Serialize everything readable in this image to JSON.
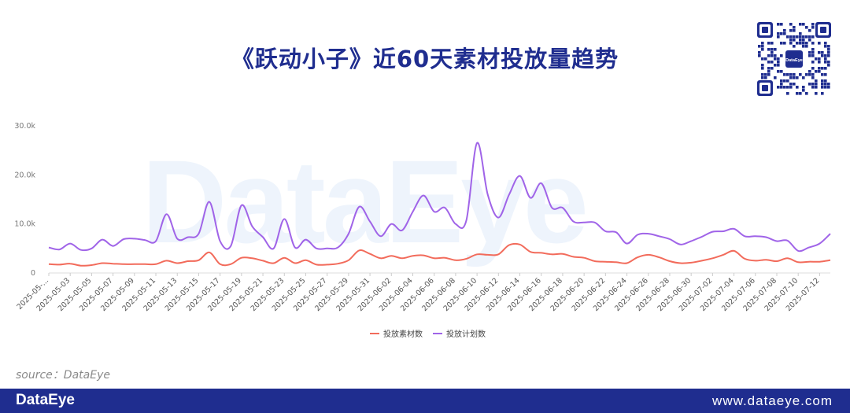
{
  "page": {
    "title": "《跃动小子》近60天素材投放量趋势",
    "watermark": "DataEye",
    "qr_label": "DataEye",
    "source": "source：DataEye",
    "footer_brand": "DataEye",
    "footer_url": "www.dataeye.com"
  },
  "colors": {
    "title": "#1f2d8f",
    "footer_bg": "#1f2d8f",
    "series_material": "#f26b5b",
    "series_plan": "#a064e8",
    "axis_labels": "#555555"
  },
  "chart_data": {
    "type": "line",
    "title": "《跃动小子》近60天素材投放量趋势",
    "y_ticks": [
      "0",
      "10.0k",
      "20.0k",
      "30.0k"
    ],
    "ylim": [
      0,
      30000
    ],
    "legend_position": "bottom-center",
    "grid": false,
    "x": [
      "2025-05-01",
      "2025-05-02",
      "2025-05-03",
      "2025-05-04",
      "2025-05-05",
      "2025-05-06",
      "2025-05-07",
      "2025-05-08",
      "2025-05-09",
      "2025-05-10",
      "2025-05-11",
      "2025-05-12",
      "2025-05-13",
      "2025-05-14",
      "2025-05-15",
      "2025-05-16",
      "2025-05-17",
      "2025-05-18",
      "2025-05-19",
      "2025-05-20",
      "2025-05-21",
      "2025-05-22",
      "2025-05-23",
      "2025-05-24",
      "2025-05-25",
      "2025-05-26",
      "2025-05-27",
      "2025-05-28",
      "2025-05-29",
      "2025-05-30",
      "2025-05-31",
      "2025-06-01",
      "2025-06-02",
      "2025-06-03",
      "2025-06-04",
      "2025-06-05",
      "2025-06-06",
      "2025-06-07",
      "2025-06-08",
      "2025-06-09",
      "2025-06-10",
      "2025-06-11",
      "2025-06-12",
      "2025-06-13",
      "2025-06-14",
      "2025-06-15",
      "2025-06-16",
      "2025-06-17",
      "2025-06-18",
      "2025-06-19",
      "2025-06-20",
      "2025-06-21",
      "2025-06-22",
      "2025-06-23",
      "2025-06-24",
      "2025-06-25",
      "2025-06-26",
      "2025-06-27",
      "2025-06-28",
      "2025-06-29",
      "2025-06-30",
      "2025-07-01",
      "2025-07-02",
      "2025-07-03",
      "2025-07-04",
      "2025-07-05",
      "2025-07-06",
      "2025-07-07",
      "2025-07-08",
      "2025-07-09",
      "2025-07-10",
      "2025-07-11",
      "2025-07-12",
      "2025-07-13"
    ],
    "x_tick_labels": [
      "2025-05-...",
      "2025-05-03",
      "2025-05-05",
      "2025-05-07",
      "2025-05-09",
      "2025-05-11",
      "2025-05-13",
      "2025-05-15",
      "2025-05-17",
      "2025-05-19",
      "2025-05-21",
      "2025-05-23",
      "2025-05-25",
      "2025-05-27",
      "2025-05-29",
      "2025-05-31",
      "2025-06-02",
      "2025-06-04",
      "2025-06-06",
      "2025-06-08",
      "2025-06-10",
      "2025-06-12",
      "2025-06-14",
      "2025-06-16",
      "2025-06-18",
      "2025-06-20",
      "2025-06-22",
      "2025-06-24",
      "2025-06-26",
      "2025-06-28",
      "2025-06-30",
      "2025-07-02",
      "2025-07-04",
      "2025-07-06",
      "2025-07-08",
      "2025-07-10",
      "2025-07-12"
    ],
    "series": [
      {
        "name": "投放素材数",
        "values": [
          1800,
          1700,
          1900,
          1500,
          1600,
          2000,
          1900,
          1800,
          1800,
          1800,
          1800,
          2500,
          2000,
          2400,
          2600,
          4200,
          1800,
          1800,
          3100,
          3000,
          2500,
          2000,
          3100,
          2000,
          2600,
          1700,
          1700,
          1900,
          2600,
          4600,
          3900,
          3000,
          3500,
          3000,
          3500,
          3600,
          3000,
          3100,
          2600,
          2900,
          3800,
          3700,
          3800,
          5700,
          5800,
          4300,
          4100,
          3800,
          3900,
          3300,
          3100,
          2400,
          2300,
          2200,
          2000,
          3200,
          3700,
          3200,
          2400,
          2000,
          2100,
          2500,
          3000,
          3700,
          4500,
          2900,
          2500,
          2700,
          2400,
          3000,
          2200,
          2300,
          2300,
          2600
        ]
      },
      {
        "name": "投放计划数",
        "values": [
          5200,
          4800,
          6000,
          4700,
          5000,
          6800,
          5500,
          6900,
          7000,
          6700,
          6500,
          12000,
          7000,
          7300,
          8000,
          14500,
          6500,
          5500,
          13800,
          9500,
          7300,
          5000,
          11000,
          5200,
          6800,
          5000,
          5000,
          5200,
          8000,
          13500,
          10500,
          7500,
          10000,
          8700,
          12500,
          15800,
          12500,
          13300,
          10000,
          10700,
          26500,
          16000,
          11300,
          16000,
          19800,
          15300,
          18300,
          13300,
          13300,
          10500,
          10300,
          10300,
          8500,
          8300,
          6000,
          7800,
          8000,
          7500,
          6900,
          5800,
          6500,
          7400,
          8400,
          8500,
          9000,
          7500,
          7500,
          7300,
          6500,
          6600,
          4500,
          5200,
          6000,
          8000
        ]
      }
    ]
  }
}
